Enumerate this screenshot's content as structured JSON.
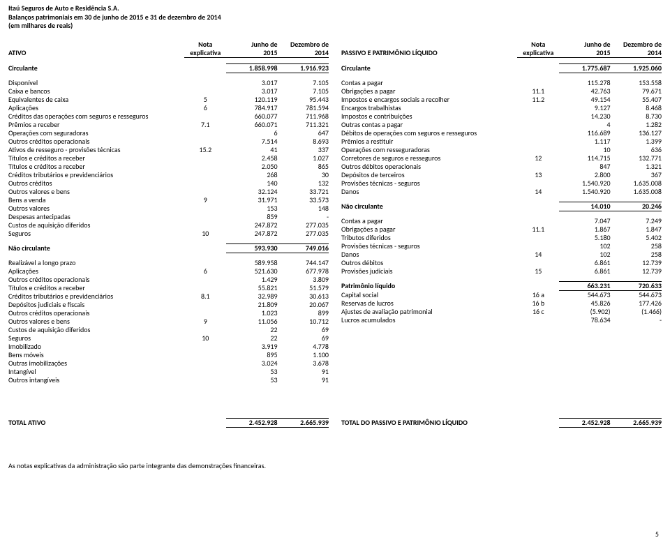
{
  "header": {
    "company": "Itaú Seguros de Auto e Residência S.A.",
    "title": "Balanços patrimoniais em 30 de junho de 2015 e 31 de dezembro de 2014",
    "unit": "(em milhares de reais)"
  },
  "colHeaders": {
    "leftTitle": "ATIVO",
    "rightTitle": "PASSIVO E PATRIMÔNIO LÍQUIDO",
    "noteTop": "Nota",
    "noteBottom": "explicativa",
    "c1Top": "Junho de",
    "c1Bottom": "2015",
    "c2Top": "Dezembro de",
    "c2Bottom": "2014"
  },
  "left": [
    {
      "type": "spacer"
    },
    {
      "type": "bold",
      "label": "Circulante",
      "v1": "1.858.998",
      "v2": "1.916.923"
    },
    {
      "type": "spacer"
    },
    {
      "label": "Disponível",
      "v1": "3.017",
      "v2": "7.105"
    },
    {
      "label": "Caixa e bancos",
      "indent": 1,
      "v1": "3.017",
      "v2": "7.105"
    },
    {
      "label": "Equivalentes de caixa",
      "note": "5",
      "v1": "120.119",
      "v2": "95.443"
    },
    {
      "label": "Aplicações",
      "note": "6",
      "v1": "784.917",
      "v2": "781.594"
    },
    {
      "label": "Créditos das operações com seguros e resseguros",
      "v1": "660.077",
      "v2": "711.968"
    },
    {
      "label": "Prêmios a receber",
      "indent": 1,
      "note": "7.1",
      "v1": "660.071",
      "v2": "711.321"
    },
    {
      "label": "Operações com seguradoras",
      "indent": 1,
      "v1": "6",
      "v2": "647"
    },
    {
      "label": "Outros créditos operacionais",
      "v1": "7.514",
      "v2": "8.693"
    },
    {
      "label": "Ativos de resseguro - provisões técnicas",
      "note": "15.2",
      "v1": "41",
      "v2": "337"
    },
    {
      "label": "Títulos e créditos a receber",
      "v1": "2.458",
      "v2": "1.027"
    },
    {
      "label": "Títulos e créditos a receber",
      "indent": 1,
      "v1": "2.050",
      "v2": "865"
    },
    {
      "label": "Créditos tributários e previdenciários",
      "indent": 1,
      "v1": "268",
      "v2": "30"
    },
    {
      "label": "Outros  créditos",
      "indent": 1,
      "v1": "140",
      "v2": "132"
    },
    {
      "label": "Outros valores e bens",
      "v1": "32.124",
      "v2": "33.721"
    },
    {
      "label": "Bens a venda",
      "indent": 1,
      "note": "9",
      "v1": "31.971",
      "v2": "33.573"
    },
    {
      "label": "Outros valores",
      "indent": 1,
      "v1": "153",
      "v2": "148"
    },
    {
      "label": "Despesas antecipadas",
      "v1": "859",
      "v2": "-"
    },
    {
      "label": "Custos de aquisição diferidos",
      "v1": "247.872",
      "v2": "277.035"
    },
    {
      "label": "Seguros",
      "indent": 1,
      "note": "10",
      "v1": "247.872",
      "v2": "277.035"
    },
    {
      "type": "spacer"
    },
    {
      "type": "bold",
      "label": "Não circulante",
      "v1": "593.930",
      "v2": "749.016"
    },
    {
      "type": "spacer"
    },
    {
      "label": "Realizável a longo prazo",
      "v1": "589.958",
      "v2": "744.147"
    },
    {
      "label": "Aplicações",
      "note": "6",
      "v1": "521.630",
      "v2": "677.978"
    },
    {
      "label": "Outros créditos operacionais",
      "v1": "1.429",
      "v2": "3.809"
    },
    {
      "label": "Títulos e créditos a receber",
      "v1": "55.821",
      "v2": "51.579"
    },
    {
      "label": "Créditos tributários e previdenciários",
      "indent": 1,
      "note": "8.1",
      "v1": "32.989",
      "v2": "30.613"
    },
    {
      "label": "Depósitos judiciais e fiscais",
      "indent": 1,
      "v1": "21.809",
      "v2": "20.067"
    },
    {
      "label": "Outros créditos operacionais",
      "indent": 1,
      "v1": "1.023",
      "v2": "899"
    },
    {
      "label": "Outros valores e bens",
      "note": "9",
      "v1": "11.056",
      "v2": "10.712"
    },
    {
      "label": "Custos de aquisição diferidos",
      "v1": "22",
      "v2": "69"
    },
    {
      "label": "Seguros",
      "indent": 1,
      "note": "10",
      "v1": "22",
      "v2": "69"
    },
    {
      "label": "Imobilizado",
      "v1": "3.919",
      "v2": "4.778"
    },
    {
      "label": "Bens móveis",
      "indent": 1,
      "v1": "895",
      "v2": "1.100"
    },
    {
      "label": "Outras imobilizações",
      "indent": 1,
      "v1": "3.024",
      "v2": "3.678"
    },
    {
      "label": "Intangível",
      "v1": "53",
      "v2": "91"
    },
    {
      "label": "Outros intangíveis",
      "indent": 1,
      "v1": "53",
      "v2": "91"
    }
  ],
  "right": [
    {
      "type": "spacer"
    },
    {
      "type": "bold",
      "label": "Circulante",
      "v1": "1.775.687",
      "v2": "1.925.060"
    },
    {
      "type": "spacer"
    },
    {
      "label": "Contas a pagar",
      "v1": "115.278",
      "v2": "153.558"
    },
    {
      "label": "Obrigações a pagar",
      "indent": 1,
      "note": "11.1",
      "v1": "42.763",
      "v2": "79.671"
    },
    {
      "label": "Impostos e encargos sociais a recolher",
      "indent": 1,
      "note": "11.2",
      "v1": "49.154",
      "v2": "55.407"
    },
    {
      "label": "Encargos trabalhistas",
      "indent": 1,
      "v1": "9.127",
      "v2": "8.468"
    },
    {
      "label": "Impostos e contribuições",
      "indent": 1,
      "v1": "14.230",
      "v2": "8.730"
    },
    {
      "label": "Outras contas a pagar",
      "indent": 1,
      "v1": "4",
      "v2": "1.282"
    },
    {
      "label": "Débitos de operações com seguros e resseguros",
      "v1": "116.689",
      "v2": "136.127"
    },
    {
      "label": "Prêmios a restituir",
      "indent": 1,
      "v1": "1.117",
      "v2": "1.399"
    },
    {
      "label": "Operações com resseguradoras",
      "indent": 1,
      "v1": "10",
      "v2": "636"
    },
    {
      "label": "Corretores de seguros e resseguros",
      "indent": 1,
      "note": "12",
      "v1": "114.715",
      "v2": "132.771"
    },
    {
      "label": "Outros débitos operacionais",
      "indent": 1,
      "v1": "847",
      "v2": "1.321"
    },
    {
      "label": "Depósitos de terceiros",
      "note": "13",
      "v1": "2.800",
      "v2": "367"
    },
    {
      "label": "Provisões técnicas - seguros",
      "v1": "1.540.920",
      "v2": "1.635.008"
    },
    {
      "label": "Danos",
      "indent": 1,
      "note": "14",
      "v1": "1.540.920",
      "v2": "1.635.008"
    },
    {
      "type": "spacer"
    },
    {
      "type": "bold",
      "label": "Não circulante",
      "v1": "14.010",
      "v2": "20.246"
    },
    {
      "type": "spacer"
    },
    {
      "label": "Contas a pagar",
      "v1": "7.047",
      "v2": "7.249"
    },
    {
      "label": "Obrigações a pagar",
      "indent": 1,
      "note": "11.1",
      "v1": "1.867",
      "v2": "1.847"
    },
    {
      "label": "Tributos diferidos",
      "indent": 1,
      "v1": "5.180",
      "v2": "5.402"
    },
    {
      "label": "Provisões técnicas - seguros",
      "v1": "102",
      "v2": "258"
    },
    {
      "label": "Danos",
      "indent": 1,
      "note": "14",
      "v1": "102",
      "v2": "258"
    },
    {
      "label": "Outros débitos",
      "v1": "6.861",
      "v2": "12.739"
    },
    {
      "label": "Provisões judiciais",
      "indent": 1,
      "note": "15",
      "v1": "6.861",
      "v2": "12.739"
    },
    {
      "type": "spacer"
    },
    {
      "type": "bold",
      "label": "Patrimônio líquido",
      "v1": "663.231",
      "v2": "720.633"
    },
    {
      "label": "Capital social",
      "note": "16 a",
      "v1": "544.673",
      "v2": "544.673"
    },
    {
      "label": "Reservas de lucros",
      "note": "16 b",
      "v1": "45.826",
      "v2": "177.426"
    },
    {
      "label": "Ajustes de avaliação patrimonial",
      "note": "16 c",
      "v1": "(5.902)",
      "v2": "(1.466)"
    },
    {
      "label": "Lucros acumulados",
      "v1": "78.634",
      "v2": "-"
    }
  ],
  "totals": {
    "leftLabel": "TOTAL ATIVO",
    "leftV1": "2.452.928",
    "leftV2": "2.665.939",
    "rightLabel": "TOTAL DO PASSIVO E PATRIMÔNIO LÍQUIDO",
    "rightV1": "2.452.928",
    "rightV2": "2.665.939"
  },
  "footnote": "As notas explicativas da administração são parte integrante das demonstrações financeiras.",
  "pageNumber": "5",
  "style": {
    "fontFamily": "Calibri, Arial, sans-serif",
    "baseFontSize": 10,
    "boldWeight": "bold",
    "textColor": "#000000",
    "background": "#ffffff",
    "pageWidth": 960,
    "pageHeight": 784
  }
}
